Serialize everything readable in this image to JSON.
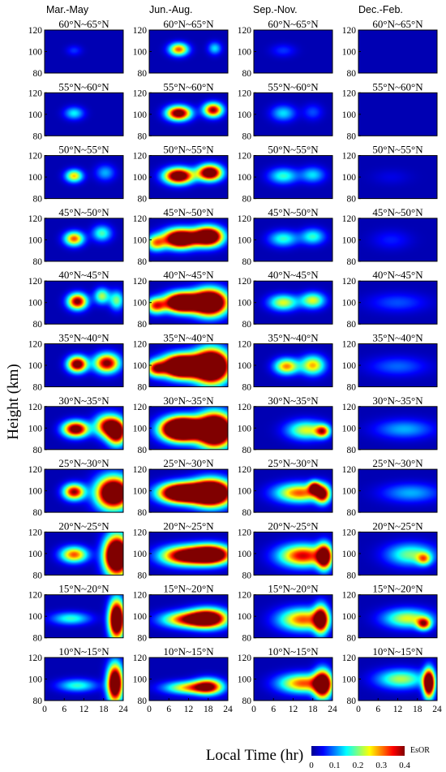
{
  "chart_data": {
    "type": "heatmap",
    "ylabel": "Height (km)",
    "xlabel": "Local Time (hr)",
    "seasons": [
      "Mar.-May",
      "Jun.-Aug.",
      "Sep.-Nov.",
      "Dec.-Feb."
    ],
    "latitude_bands": [
      "60°N~65°N",
      "55°N~60°N",
      "50°N~55°N",
      "45°N~50°N",
      "40°N~45°N",
      "35°N~40°N",
      "30°N~35°N",
      "25°N~30°N",
      "20°N~25°N",
      "15°N~20°N",
      "10°N~15°N"
    ],
    "x_ticks": [
      "0",
      "6",
      "12",
      "18",
      "24"
    ],
    "y_ticks": [
      "120",
      "100",
      "80"
    ],
    "xlim": [
      0,
      24
    ],
    "ylim": [
      80,
      120
    ],
    "colorbar": {
      "label": "EsOR",
      "ticks": [
        "0",
        "0.1",
        "0.2",
        "0.3",
        "0.4"
      ],
      "range": [
        0,
        0.4
      ],
      "colormap": "jet"
    },
    "panels": [
      [
        {
          "features": [
            {
              "t": 9,
              "h": 101,
              "st": 1.6,
              "sh": 3.2,
              "v": 0.05
            }
          ]
        },
        {
          "features": [
            {
              "t": 9,
              "h": 101,
              "st": 2.0,
              "sh": 4,
              "v": 0.13
            }
          ]
        },
        {
          "features": [
            {
              "t": 9,
              "h": 101,
              "st": 1.8,
              "sh": 4,
              "v": 0.25
            },
            {
              "t": 18.5,
              "h": 104,
              "st": 2,
              "sh": 5,
              "v": 0.1
            }
          ]
        },
        {
          "features": [
            {
              "t": 9,
              "h": 101,
              "st": 2,
              "sh": 4.5,
              "v": 0.3
            },
            {
              "t": 17.5,
              "h": 106,
              "st": 2,
              "sh": 5,
              "v": 0.16
            }
          ]
        },
        {
          "features": [
            {
              "t": 10,
              "h": 101,
              "st": 2,
              "sh": 5,
              "v": 0.4
            },
            {
              "t": 17.5,
              "h": 106,
              "st": 1.6,
              "sh": 5,
              "v": 0.2
            },
            {
              "t": 22,
              "h": 102,
              "st": 1.5,
              "sh": 6,
              "v": 0.18
            }
          ]
        },
        {
          "features": [
            {
              "t": 10,
              "h": 101,
              "st": 2,
              "sh": 5,
              "v": 0.45
            },
            {
              "t": 19,
              "h": 102,
              "st": 2.6,
              "sh": 6,
              "v": 0.4
            }
          ]
        },
        {
          "features": [
            {
              "t": 9.5,
              "h": 99,
              "st": 2.6,
              "sh": 5,
              "v": 0.45
            },
            {
              "t": 19,
              "h": 102,
              "st": 2.5,
              "sh": 7,
              "v": 0.35
            },
            {
              "t": 22,
              "h": 96,
              "st": 2,
              "sh": 8,
              "v": 0.45
            }
          ]
        },
        {
          "features": [
            {
              "t": 9,
              "h": 99,
              "st": 2.2,
              "sh": 5,
              "v": 0.38
            },
            {
              "t": 21,
              "h": 98,
              "st": 3.5,
              "sh": 10,
              "v": 0.6
            }
          ]
        },
        {
          "features": [
            {
              "t": 9,
              "h": 99,
              "st": 2.8,
              "sh": 5,
              "v": 0.3
            },
            {
              "t": 22,
              "h": 98,
              "st": 2.5,
              "sh": 12,
              "v": 0.7
            }
          ]
        },
        {
          "features": [
            {
              "t": 8,
              "h": 98,
              "st": 4,
              "sh": 4,
              "v": 0.15
            },
            {
              "t": 22,
              "h": 97,
              "st": 1.6,
              "sh": 12,
              "v": 0.6
            }
          ]
        },
        {
          "features": [
            {
              "t": 10,
              "h": 94,
              "st": 4,
              "sh": 4,
              "v": 0.15
            },
            {
              "t": 21.5,
              "h": 96,
              "st": 1.6,
              "sh": 12,
              "v": 0.55
            }
          ]
        }
      ],
      [
        {
          "features": [
            {
              "t": 9,
              "h": 102,
              "st": 2,
              "sh": 4,
              "v": 0.3
            },
            {
              "t": 20,
              "h": 103,
              "st": 1.4,
              "sh": 4,
              "v": 0.12
            }
          ]
        },
        {
          "features": [
            {
              "t": 9,
              "h": 101,
              "st": 2.5,
              "sh": 4.5,
              "v": 0.45
            },
            {
              "t": 19.5,
              "h": 104,
              "st": 2,
              "sh": 4.5,
              "v": 0.38
            }
          ]
        },
        {
          "features": [
            {
              "t": 9,
              "h": 101,
              "st": 3,
              "sh": 5,
              "v": 0.5
            },
            {
              "t": 18.5,
              "h": 104,
              "st": 2.5,
              "sh": 5,
              "v": 0.5
            }
          ]
        },
        {
          "features": [
            {
              "t": 9.5,
              "h": 101,
              "st": 3.5,
              "sh": 6,
              "v": 0.6
            },
            {
              "t": 18,
              "h": 103,
              "st": 3,
              "sh": 6,
              "v": 0.6
            },
            {
              "t": 2,
              "h": 97,
              "st": 2,
              "sh": 5,
              "v": 0.25
            }
          ]
        },
        {
          "features": [
            {
              "t": 10,
              "h": 100,
              "st": 3.5,
              "sh": 6,
              "v": 0.7
            },
            {
              "t": 18.5,
              "h": 100,
              "st": 3.5,
              "sh": 8,
              "v": 0.7
            },
            {
              "t": 2,
              "h": 97,
              "st": 2,
              "sh": 5,
              "v": 0.3
            }
          ]
        },
        {
          "features": [
            {
              "t": 10,
              "h": 99,
              "st": 4,
              "sh": 7,
              "v": 0.8
            },
            {
              "t": 19,
              "h": 99,
              "st": 3.5,
              "sh": 10,
              "v": 0.8
            },
            {
              "t": 2,
              "h": 97,
              "st": 2,
              "sh": 5,
              "v": 0.3
            }
          ]
        },
        {
          "features": [
            {
              "t": 10,
              "h": 99,
              "st": 4,
              "sh": 7,
              "v": 0.9
            },
            {
              "t": 20,
              "h": 98,
              "st": 3.5,
              "sh": 10,
              "v": 0.8
            }
          ]
        },
        {
          "features": [
            {
              "t": 10,
              "h": 98,
              "st": 4.5,
              "sh": 6,
              "v": 0.7
            },
            {
              "t": 19,
              "h": 98,
              "st": 4,
              "sh": 8,
              "v": 0.75
            }
          ]
        },
        {
          "features": [
            {
              "t": 11,
              "h": 98,
              "st": 5,
              "sh": 6,
              "v": 0.45
            },
            {
              "t": 19,
              "h": 99,
              "st": 4,
              "sh": 6,
              "v": 0.55
            }
          ]
        },
        {
          "features": [
            {
              "t": 11,
              "h": 97,
              "st": 5,
              "sh": 5,
              "v": 0.3
            },
            {
              "t": 18,
              "h": 98,
              "st": 4,
              "sh": 6,
              "v": 0.5
            }
          ]
        },
        {
          "features": [
            {
              "t": 12,
              "h": 92,
              "st": 5,
              "sh": 4,
              "v": 0.25
            },
            {
              "t": 18,
              "h": 93,
              "st": 3,
              "sh": 5,
              "v": 0.35
            }
          ]
        }
      ],
      [
        {
          "features": [
            {
              "t": 9,
              "h": 101,
              "st": 2.5,
              "sh": 4,
              "v": 0.05
            }
          ]
        },
        {
          "features": [
            {
              "t": 9,
              "h": 101,
              "st": 2.5,
              "sh": 5,
              "v": 0.12
            },
            {
              "t": 18,
              "h": 102,
              "st": 2,
              "sh": 5,
              "v": 0.06
            }
          ]
        },
        {
          "features": [
            {
              "t": 9,
              "h": 101,
              "st": 3,
              "sh": 5,
              "v": 0.15
            },
            {
              "t": 18,
              "h": 102,
              "st": 2.5,
              "sh": 5,
              "v": 0.12
            }
          ]
        },
        {
          "features": [
            {
              "t": 9,
              "h": 101,
              "st": 3,
              "sh": 5,
              "v": 0.15
            },
            {
              "t": 18,
              "h": 103,
              "st": 2.5,
              "sh": 5,
              "v": 0.15
            }
          ]
        },
        {
          "features": [
            {
              "t": 9,
              "h": 100,
              "st": 3,
              "sh": 5,
              "v": 0.22
            },
            {
              "t": 18,
              "h": 102,
              "st": 2.5,
              "sh": 5,
              "v": 0.22
            }
          ]
        },
        {
          "features": [
            {
              "t": 10,
              "h": 99,
              "st": 2.5,
              "sh": 5,
              "v": 0.28
            },
            {
              "t": 18,
              "h": 100,
              "st": 2.5,
              "sh": 6,
              "v": 0.26
            }
          ]
        },
        {
          "features": [
            {
              "t": 16,
              "h": 98,
              "st": 4,
              "sh": 6,
              "v": 0.22
            },
            {
              "t": 21,
              "h": 97,
              "st": 1.5,
              "sh": 4,
              "v": 0.28
            }
          ]
        },
        {
          "features": [
            {
              "t": 14,
              "h": 98,
              "st": 5,
              "sh": 6,
              "v": 0.3
            },
            {
              "t": 18.5,
              "h": 103,
              "st": 1.2,
              "sh": 4,
              "v": 0.35
            },
            {
              "t": 21,
              "h": 97,
              "st": 1.5,
              "sh": 6,
              "v": 0.35
            }
          ]
        },
        {
          "features": [
            {
              "t": 15,
              "h": 98,
              "st": 5,
              "sh": 7,
              "v": 0.35
            },
            {
              "t": 21.5,
              "h": 97,
              "st": 1.5,
              "sh": 8,
              "v": 0.45
            }
          ]
        },
        {
          "features": [
            {
              "t": 15,
              "h": 97,
              "st": 5,
              "sh": 7,
              "v": 0.3
            },
            {
              "t": 20.5,
              "h": 97,
              "st": 1.5,
              "sh": 9,
              "v": 0.4
            }
          ]
        },
        {
          "features": [
            {
              "t": 15,
              "h": 96,
              "st": 5,
              "sh": 6,
              "v": 0.3
            },
            {
              "t": 21,
              "h": 95,
              "st": 1.8,
              "sh": 9,
              "v": 0.5
            }
          ]
        }
      ],
      [
        {
          "features": []
        },
        {
          "features": []
        },
        {
          "features": [
            {
              "t": 10,
              "h": 100,
              "st": 4,
              "sh": 5,
              "v": 0.02
            }
          ]
        },
        {
          "features": [
            {
              "t": 10,
              "h": 100,
              "st": 4,
              "sh": 6,
              "v": 0.04
            }
          ]
        },
        {
          "features": [
            {
              "t": 12,
              "h": 100,
              "st": 6,
              "sh": 6,
              "v": 0.06
            }
          ]
        },
        {
          "features": [
            {
              "t": 12,
              "h": 99,
              "st": 6,
              "sh": 6,
              "v": 0.07
            }
          ]
        },
        {
          "features": [
            {
              "t": 14,
              "h": 99,
              "st": 6,
              "sh": 6,
              "v": 0.1
            }
          ]
        },
        {
          "features": [
            {
              "t": 16,
              "h": 98,
              "st": 6,
              "sh": 6,
              "v": 0.1
            }
          ]
        },
        {
          "features": [
            {
              "t": 16,
              "h": 99,
              "st": 5,
              "sh": 7,
              "v": 0.18
            },
            {
              "t": 20,
              "h": 95,
              "st": 1.5,
              "sh": 4,
              "v": 0.2
            }
          ]
        },
        {
          "features": [
            {
              "t": 15,
              "h": 98,
              "st": 5,
              "sh": 6,
              "v": 0.22
            },
            {
              "t": 20,
              "h": 93,
              "st": 1.5,
              "sh": 4,
              "v": 0.3
            }
          ]
        },
        {
          "features": [
            {
              "t": 13,
              "h": 100,
              "st": 5,
              "sh": 6,
              "v": 0.2
            },
            {
              "t": 21.5,
              "h": 96,
              "st": 1.2,
              "sh": 9,
              "v": 0.55
            }
          ]
        }
      ]
    ]
  }
}
